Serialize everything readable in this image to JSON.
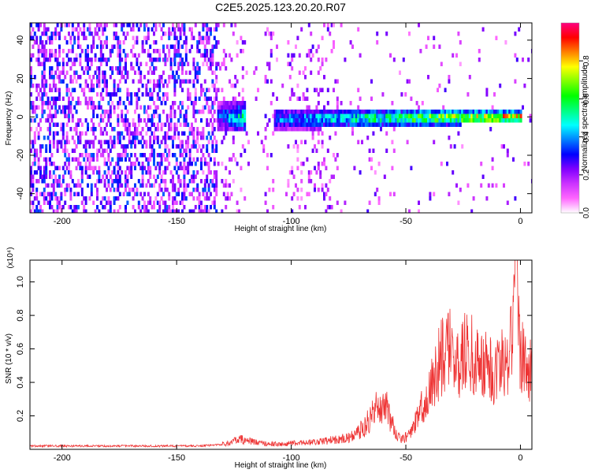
{
  "title": "C2E5.2025.123.20.20.R07",
  "chart_data": [
    {
      "type": "heatmap",
      "title": "C2E5.2025.123.20.20.R07",
      "xlabel": "Height of straight line (km)",
      "ylabel": "Frequency (Hz)",
      "xlim": [
        -214,
        5
      ],
      "ylim": [
        -50,
        49
      ],
      "xticks": [
        -200,
        -150,
        -100,
        -50,
        0
      ],
      "yticks": [
        -40,
        -20,
        0,
        20,
        40
      ],
      "colorbar": {
        "label": "Normalized spectral amplitude",
        "range": [
          0,
          1
        ],
        "ticks": [
          "0.0",
          "0.2",
          "0.4",
          "0.6",
          "0.8"
        ],
        "colors": [
          "#ffffff",
          "#ff66ff",
          "#cc33ff",
          "#8000ff",
          "#0000ff",
          "#0080ff",
          "#00ffff",
          "#00ff80",
          "#00ff00",
          "#80ff00",
          "#ffff00",
          "#ff8000",
          "#ff0000",
          "#ff0080"
        ]
      },
      "bands": [
        {
          "x": [
            -214,
            -133
          ],
          "freq_halfwidth": 49,
          "amplitude": [
            0.05,
            0.35
          ]
        },
        {
          "x": [
            -133,
            -120
          ],
          "freq_center": 1,
          "freq_halfwidth": 8,
          "amplitude": [
            0.35,
            0.6
          ]
        },
        {
          "x": [
            -108,
            0
          ],
          "freq_center": [
            0,
            1
          ],
          "freq_halfwidth": [
            6,
            3
          ],
          "amplitude": [
            0.4,
            0.95
          ]
        }
      ],
      "grid": false
    },
    {
      "type": "line",
      "xlabel": "Height of straight line (km)",
      "ylabel": "SNR (10 * v/v)",
      "yscale_label": "(x10⁴)",
      "xlim": [
        -214,
        5
      ],
      "ylim": [
        0,
        1.13
      ],
      "xticks": [
        -200,
        -150,
        -100,
        -50,
        0
      ],
      "yticks": [
        0.2,
        0.4,
        0.6,
        0.8,
        1.0
      ],
      "series": [
        {
          "color": "#ee3333",
          "x": [
            -214,
            -200,
            -180,
            -160,
            -140,
            -130,
            -122,
            -115,
            -105,
            -95,
            -85,
            -75,
            -68,
            -62,
            -58,
            -55,
            -52,
            -48,
            -44,
            -40,
            -36,
            -32,
            -28,
            -24,
            -20,
            -16,
            -12,
            -8,
            -5,
            -3,
            -2,
            0,
            2,
            5
          ],
          "y": [
            0.02,
            0.02,
            0.02,
            0.02,
            0.02,
            0.03,
            0.06,
            0.04,
            0.03,
            0.04,
            0.05,
            0.07,
            0.12,
            0.25,
            0.22,
            0.1,
            0.05,
            0.08,
            0.2,
            0.3,
            0.45,
            0.55,
            0.5,
            0.52,
            0.5,
            0.45,
            0.42,
            0.47,
            0.52,
            0.7,
            1.1,
            0.45,
            0.52,
            0.4
          ]
        }
      ],
      "grid": false
    }
  ]
}
